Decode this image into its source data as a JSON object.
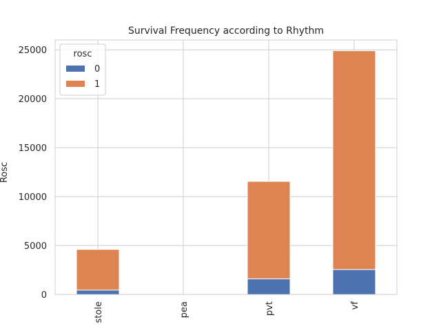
{
  "chart_data": {
    "type": "bar",
    "stacked": true,
    "title": "Survival Frequency according to Rhythm",
    "xlabel": "",
    "ylabel": "Rosc",
    "categories": [
      "stole",
      "pea",
      "pvt",
      "vf"
    ],
    "series": [
      {
        "name": "0",
        "values": [
          450,
          0,
          1600,
          2550
        ],
        "color": "#4c72b0"
      },
      {
        "name": "1",
        "values": [
          4150,
          0,
          9950,
          22350
        ],
        "color": "#dd8452"
      }
    ],
    "ylim": [
      0,
      26000
    ],
    "yticks": [
      0,
      5000,
      10000,
      15000,
      20000,
      25000
    ],
    "grid": true,
    "legend": {
      "title": "rosc",
      "placement": "top-left"
    }
  }
}
